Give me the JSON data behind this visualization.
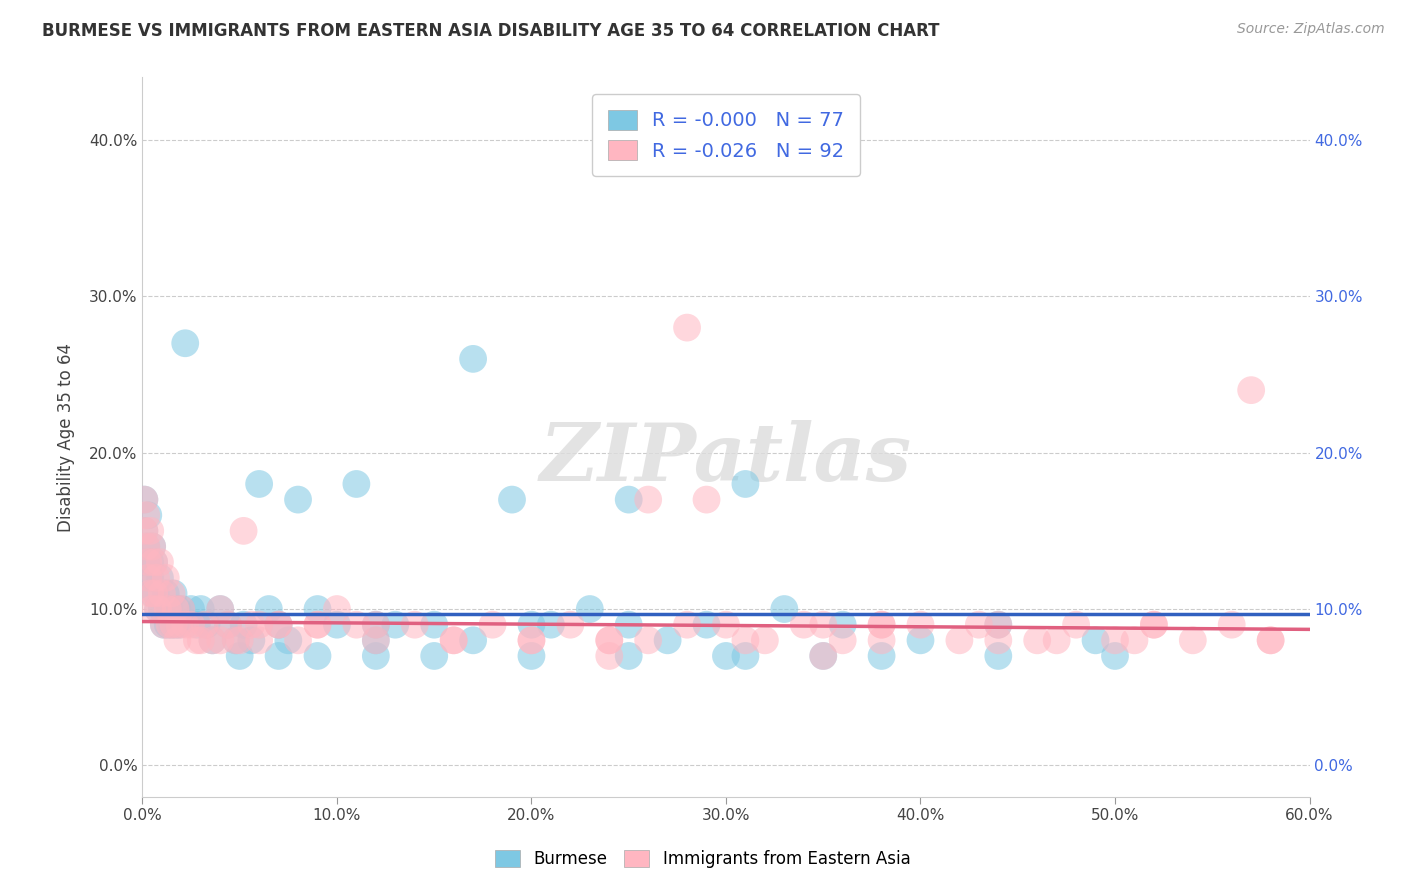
{
  "title": "BURMESE VS IMMIGRANTS FROM EASTERN ASIA DISABILITY AGE 35 TO 64 CORRELATION CHART",
  "source": "Source: ZipAtlas.com",
  "xlabel": "",
  "ylabel": "Disability Age 35 to 64",
  "xlim": [
    0.0,
    0.6
  ],
  "ylim": [
    -0.02,
    0.44
  ],
  "xticks": [
    0.0,
    0.1,
    0.2,
    0.3,
    0.4,
    0.5,
    0.6
  ],
  "xticklabels": [
    "0.0%",
    "10.0%",
    "20.0%",
    "30.0%",
    "40.0%",
    "50.0%",
    "60.0%"
  ],
  "yticks": [
    0.0,
    0.1,
    0.2,
    0.3,
    0.4
  ],
  "yticklabels": [
    "0.0%",
    "10.0%",
    "20.0%",
    "30.0%",
    "40.0%"
  ],
  "blue_color": "#7EC8E3",
  "pink_color": "#FFB6C1",
  "blue_line_color": "#3060C0",
  "pink_line_color": "#E06080",
  "legend_r1": "R = -0.000",
  "legend_n1": "N = 77",
  "legend_r2": "R = -0.026",
  "legend_n2": "N = 92",
  "burmese_label": "Burmese",
  "eastern_asia_label": "Immigrants from Eastern Asia",
  "watermark": "ZIPatlas",
  "blue_line_y0": 0.097,
  "blue_line_y1": 0.097,
  "pink_line_y0": 0.092,
  "pink_line_y1": 0.087,
  "blue_scatter_x": [
    0.001,
    0.001,
    0.002,
    0.002,
    0.003,
    0.003,
    0.004,
    0.004,
    0.005,
    0.005,
    0.006,
    0.007,
    0.008,
    0.009,
    0.01,
    0.011,
    0.012,
    0.013,
    0.014,
    0.015,
    0.016,
    0.017,
    0.018,
    0.019,
    0.02,
    0.022,
    0.025,
    0.028,
    0.03,
    0.033,
    0.036,
    0.04,
    0.044,
    0.048,
    0.052,
    0.056,
    0.06,
    0.065,
    0.07,
    0.075,
    0.08,
    0.09,
    0.1,
    0.11,
    0.12,
    0.13,
    0.15,
    0.17,
    0.19,
    0.21,
    0.23,
    0.25,
    0.27,
    0.29,
    0.31,
    0.33,
    0.36,
    0.4,
    0.44,
    0.49,
    0.25,
    0.2,
    0.17,
    0.12,
    0.31,
    0.38,
    0.44,
    0.5,
    0.05,
    0.07,
    0.09,
    0.12,
    0.15,
    0.2,
    0.25,
    0.3,
    0.35
  ],
  "blue_scatter_y": [
    0.17,
    0.15,
    0.14,
    0.13,
    0.12,
    0.16,
    0.13,
    0.12,
    0.14,
    0.11,
    0.13,
    0.11,
    0.1,
    0.12,
    0.1,
    0.09,
    0.11,
    0.09,
    0.1,
    0.09,
    0.11,
    0.09,
    0.1,
    0.09,
    0.1,
    0.27,
    0.1,
    0.09,
    0.1,
    0.09,
    0.08,
    0.1,
    0.09,
    0.08,
    0.09,
    0.08,
    0.18,
    0.1,
    0.09,
    0.08,
    0.17,
    0.1,
    0.09,
    0.18,
    0.08,
    0.09,
    0.09,
    0.08,
    0.17,
    0.09,
    0.1,
    0.09,
    0.08,
    0.09,
    0.18,
    0.1,
    0.09,
    0.08,
    0.09,
    0.08,
    0.17,
    0.09,
    0.26,
    0.09,
    0.07,
    0.07,
    0.07,
    0.07,
    0.07,
    0.07,
    0.07,
    0.07,
    0.07,
    0.07,
    0.07,
    0.07,
    0.07
  ],
  "pink_scatter_x": [
    0.001,
    0.001,
    0.002,
    0.002,
    0.003,
    0.003,
    0.004,
    0.004,
    0.005,
    0.005,
    0.006,
    0.006,
    0.007,
    0.008,
    0.009,
    0.01,
    0.011,
    0.012,
    0.013,
    0.014,
    0.015,
    0.016,
    0.017,
    0.018,
    0.019,
    0.02,
    0.022,
    0.025,
    0.028,
    0.032,
    0.036,
    0.04,
    0.044,
    0.048,
    0.052,
    0.056,
    0.06,
    0.07,
    0.08,
    0.09,
    0.1,
    0.11,
    0.12,
    0.14,
    0.16,
    0.18,
    0.2,
    0.22,
    0.24,
    0.26,
    0.28,
    0.3,
    0.32,
    0.34,
    0.36,
    0.38,
    0.4,
    0.42,
    0.44,
    0.46,
    0.48,
    0.5,
    0.52,
    0.54,
    0.56,
    0.58,
    0.26,
    0.29,
    0.35,
    0.28,
    0.38,
    0.43,
    0.47,
    0.52,
    0.57,
    0.12,
    0.06,
    0.09,
    0.07,
    0.05,
    0.04,
    0.03,
    0.16,
    0.2,
    0.24,
    0.31,
    0.38,
    0.44,
    0.51,
    0.58,
    0.24,
    0.35
  ],
  "pink_scatter_y": [
    0.17,
    0.15,
    0.14,
    0.16,
    0.13,
    0.12,
    0.15,
    0.11,
    0.14,
    0.1,
    0.13,
    0.11,
    0.12,
    0.1,
    0.13,
    0.11,
    0.09,
    0.12,
    0.1,
    0.09,
    0.11,
    0.09,
    0.1,
    0.08,
    0.09,
    0.1,
    0.09,
    0.09,
    0.08,
    0.09,
    0.08,
    0.1,
    0.09,
    0.08,
    0.15,
    0.09,
    0.08,
    0.09,
    0.08,
    0.09,
    0.1,
    0.09,
    0.08,
    0.09,
    0.08,
    0.09,
    0.08,
    0.09,
    0.08,
    0.08,
    0.09,
    0.09,
    0.08,
    0.09,
    0.08,
    0.09,
    0.09,
    0.08,
    0.09,
    0.08,
    0.09,
    0.08,
    0.09,
    0.08,
    0.09,
    0.08,
    0.17,
    0.17,
    0.09,
    0.28,
    0.09,
    0.09,
    0.08,
    0.09,
    0.24,
    0.09,
    0.09,
    0.09,
    0.09,
    0.08,
    0.08,
    0.08,
    0.08,
    0.08,
    0.08,
    0.08,
    0.08,
    0.08,
    0.08,
    0.08,
    0.07,
    0.07
  ]
}
